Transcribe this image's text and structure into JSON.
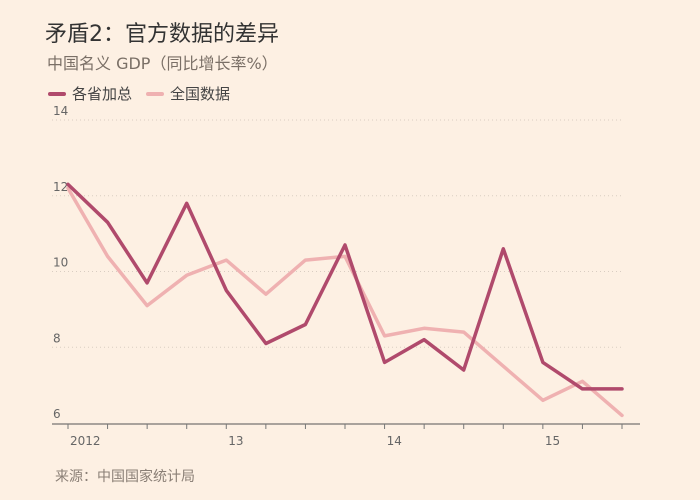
{
  "title": "矛盾2：官方数据的差异",
  "subtitle": "中国名义 GDP（同比增长率%）",
  "source": "来源：中国国家统计局",
  "colors": {
    "background": "#fdf0e3",
    "series_provinces": "#b04a6c",
    "series_national": "#efb1b1",
    "grid": "#d9cdc2",
    "axis_text": "#666666"
  },
  "chart_data": {
    "type": "line",
    "x": [
      "2012Q1",
      "2012Q2",
      "2012Q3",
      "2012Q4",
      "2013Q1",
      "2013Q2",
      "2013Q3",
      "2013Q4",
      "2014Q1",
      "2014Q2",
      "2014Q3",
      "2014Q4",
      "2015Q1",
      "2015Q2",
      "2015Q3"
    ],
    "x_tick_labels": [
      {
        "label": "2012",
        "at": "2012Q1"
      },
      {
        "label": "13",
        "at": "2013Q1"
      },
      {
        "label": "14",
        "at": "2014Q1"
      },
      {
        "label": "15",
        "at": "2015Q1"
      }
    ],
    "series": [
      {
        "name": "各省加总",
        "color": "#b04a6c",
        "values": [
          12.3,
          11.3,
          9.7,
          11.8,
          9.5,
          8.1,
          8.6,
          10.7,
          7.6,
          8.2,
          7.4,
          10.6,
          7.6,
          6.9,
          6.9
        ]
      },
      {
        "name": "全国数据",
        "color": "#efb1b1",
        "values": [
          12.2,
          10.4,
          9.1,
          9.9,
          10.3,
          9.4,
          10.3,
          10.4,
          8.3,
          8.5,
          8.4,
          7.5,
          6.6,
          7.1,
          6.2
        ]
      }
    ],
    "yticks": [
      6,
      8,
      10,
      12,
      14
    ],
    "ylim": [
      6,
      14
    ],
    "grid": true,
    "legend": "top-left"
  }
}
